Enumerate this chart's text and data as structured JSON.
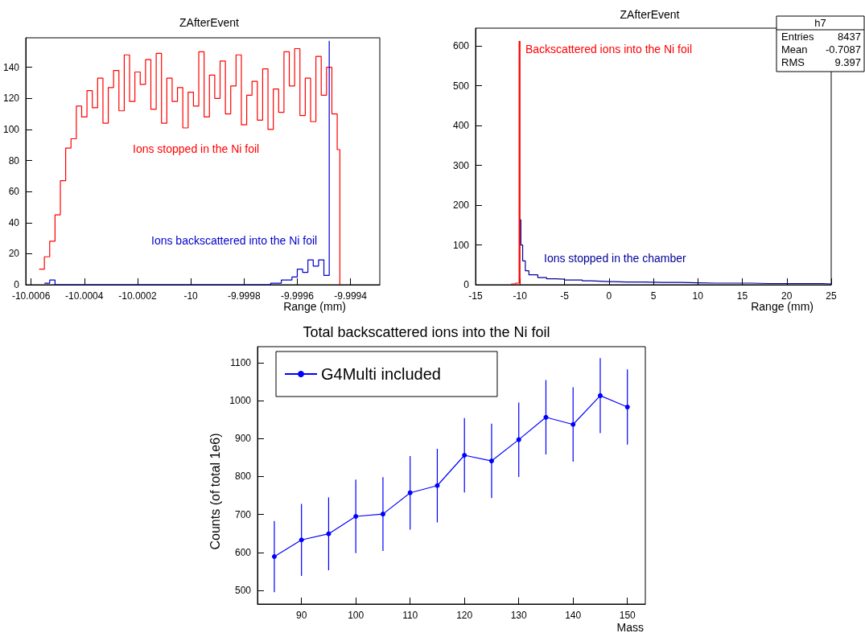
{
  "chart_data": [
    {
      "type": "step",
      "title": "ZAfterEvent",
      "xlabel": "Range (mm)",
      "xlim": [
        -10.00062,
        -9.99929
      ],
      "ylim": [
        0,
        159
      ],
      "xticks": [
        -10.0006,
        -10.0004,
        -10.0002,
        -10,
        -9.9998,
        -9.9996,
        -9.9994
      ],
      "yticks": [
        0,
        20,
        40,
        60,
        80,
        100,
        120,
        140
      ],
      "grid": false,
      "legend": false,
      "series": [
        {
          "name": "Ions stopped in the Ni foil",
          "color": "#ff0000",
          "x": [
            -10.00057,
            -10.00055,
            -10.00053,
            -10.00051,
            -10.00049,
            -10.00047,
            -10.00045,
            -10.00043,
            -10.00041,
            -10.00039,
            -10.00037,
            -10.00035,
            -10.00033,
            -10.00031,
            -10.00029,
            -10.00027,
            -10.00025,
            -10.00023,
            -10.00021,
            -10.00019,
            -10.00017,
            -10.00015,
            -10.00013,
            -10.00011,
            -10.00009,
            -10.00007,
            -10.00005,
            -10.00003,
            -10.00001,
            -9.99999,
            -9.99997,
            -9.99995,
            -9.99993,
            -9.99991,
            -9.99989,
            -9.99987,
            -9.99985,
            -9.99983,
            -9.99981,
            -9.99979,
            -9.99977,
            -9.99975,
            -9.99973,
            -9.99971,
            -9.99969,
            -9.99967,
            -9.99965,
            -9.99963,
            -9.99961,
            -9.99959,
            -9.99957,
            -9.99955,
            -9.99953,
            -9.99951,
            -9.99949,
            -9.99947,
            -9.99945,
            -9.99944
          ],
          "values": [
            10,
            18,
            28,
            45,
            67,
            88,
            94,
            115,
            108,
            125,
            114,
            133,
            104,
            127,
            138,
            112,
            148,
            118,
            137,
            129,
            145,
            113,
            149,
            104,
            133,
            118,
            127,
            101,
            124,
            115,
            150,
            108,
            135,
            120,
            144,
            110,
            128,
            148,
            103,
            122,
            131,
            106,
            139,
            100,
            126,
            111,
            150,
            128,
            152,
            109,
            133,
            105,
            147,
            122,
            140,
            110,
            87,
            0
          ]
        },
        {
          "name": "Ions backscattered into the Ni foil",
          "color": "#0000cc",
          "x": [
            -10.00055,
            -10.00053,
            -10.00051,
            -9.9997,
            -9.99966,
            -9.99962,
            -9.9996,
            -9.99958,
            -9.99956,
            -9.99954,
            -9.99952,
            -9.9995,
            -9.99948
          ],
          "values": [
            1,
            3,
            0,
            1,
            3,
            5,
            10,
            8,
            16,
            12,
            16,
            6,
            157
          ]
        }
      ]
    },
    {
      "type": "step",
      "title": "ZAfterEvent",
      "xlabel": "Range (mm)",
      "xlim": [
        -15,
        25
      ],
      "ylim": [
        0,
        645
      ],
      "xticks": [
        -15,
        -10,
        -5,
        0,
        5,
        10,
        15,
        20,
        25
      ],
      "yticks": [
        0,
        100,
        200,
        300,
        400,
        500,
        600
      ],
      "grid": false,
      "legend": false,
      "annotations": [
        "h7",
        "Entries",
        "8437",
        "Mean",
        "-0.7087",
        "RMS",
        "9.397"
      ],
      "series": [
        {
          "name": "Backscattered ions into the Ni foil",
          "color": "#ff0000",
          "x": [
            -11,
            -10.5,
            -10.1,
            -10
          ],
          "values": [
            2,
            4,
            612,
            0
          ]
        },
        {
          "name": "Ions stopped in the chamber",
          "color": "#000099",
          "x": [
            -10,
            -9.9,
            -9.7,
            -9.4,
            -9,
            -8,
            -7,
            -6,
            -5,
            -4,
            -3,
            -2,
            -1,
            0,
            2,
            4,
            6,
            8,
            10,
            12,
            14,
            16,
            18,
            20,
            22,
            24,
            25
          ],
          "values": [
            163,
            100,
            60,
            35,
            25,
            18,
            15,
            14,
            12,
            12,
            10,
            9,
            8,
            7,
            7,
            6,
            6,
            5,
            4,
            4,
            4,
            3,
            3,
            3,
            3,
            2,
            0
          ]
        }
      ]
    },
    {
      "type": "line",
      "title": "Total backscattered ions into the Ni foil",
      "xlabel": "Mass",
      "ylabel": "Counts (of total 1e6)",
      "xlim": [
        81.9,
        153.3
      ],
      "ylim": [
        464,
        1142
      ],
      "xticks": [
        90,
        100,
        110,
        120,
        130,
        140,
        150
      ],
      "yticks": [
        500,
        600,
        700,
        800,
        900,
        1000,
        1100
      ],
      "grid": false,
      "legend": "top left",
      "marker": "circle",
      "series": [
        {
          "name": "G4Multi included",
          "color": "#0000ff",
          "x": [
            85,
            90,
            95,
            100,
            105,
            110,
            115,
            120,
            125,
            130,
            135,
            140,
            145,
            150
          ],
          "values": [
            589,
            633,
            649,
            695,
            701,
            757,
            776,
            856,
            841,
            897,
            956,
            937,
            1013,
            983
          ],
          "errors": [
            94,
            95,
            96,
            97,
            97,
            97,
            97,
            98,
            98,
            98,
            98,
            98,
            99,
            99
          ]
        }
      ]
    }
  ]
}
